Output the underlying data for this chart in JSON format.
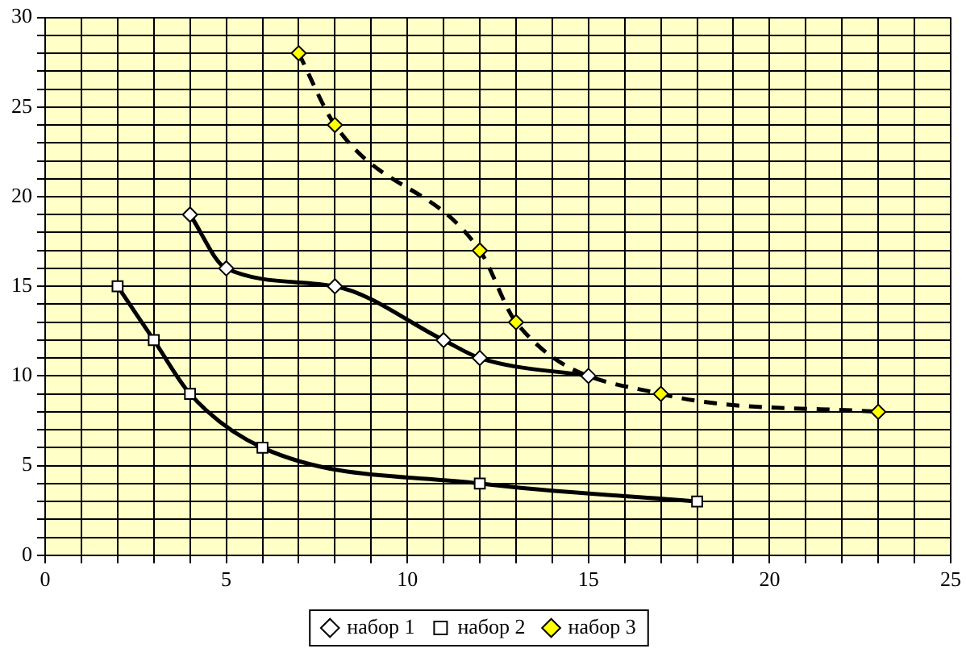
{
  "chart_data": {
    "type": "line",
    "xlim": [
      0,
      25
    ],
    "xticks": [
      0,
      {
        "value": 1,
        "label": null
      },
      {
        "value": 2,
        "label": null
      },
      {
        "value": 3,
        "label": null
      },
      {
        "value": 4,
        "label": null
      },
      5,
      {
        "value": 6,
        "label": null
      },
      {
        "value": 7,
        "label": null
      },
      {
        "value": 8,
        "label": null
      },
      {
        "value": 9,
        "label": null
      },
      10,
      {
        "value": 11,
        "label": null
      },
      {
        "value": 12,
        "label": null
      },
      {
        "value": 13,
        "label": null
      },
      {
        "value": 14,
        "label": null
      },
      15,
      {
        "value": 16,
        "label": null
      },
      {
        "value": 17,
        "label": null
      },
      {
        "value": 18,
        "label": null
      },
      {
        "value": 19,
        "label": null
      },
      20,
      {
        "value": 21,
        "label": null
      },
      {
        "value": 22,
        "label": null
      },
      {
        "value": 23,
        "label": null
      },
      {
        "value": 24,
        "label": null
      },
      25
    ],
    "ylim": [
      0,
      30
    ],
    "yticks": [
      0,
      {
        "value": 1,
        "label": null
      },
      {
        "value": 2,
        "label": null
      },
      {
        "value": 3,
        "label": null
      },
      {
        "value": 4,
        "label": null
      },
      5,
      {
        "value": 6,
        "label": null
      },
      {
        "value": 7,
        "label": null
      },
      {
        "value": 8,
        "label": null
      },
      {
        "value": 9,
        "label": null
      },
      10,
      {
        "value": 11,
        "label": null
      },
      {
        "value": 12,
        "label": null
      },
      {
        "value": 13,
        "label": null
      },
      {
        "value": 14,
        "label": null
      },
      15,
      {
        "value": 16,
        "label": null
      },
      {
        "value": 17,
        "label": null
      },
      {
        "value": 18,
        "label": null
      },
      {
        "value": 19,
        "label": null
      },
      20,
      {
        "value": 21,
        "label": null
      },
      {
        "value": 22,
        "label": null
      },
      {
        "value": 23,
        "label": null
      },
      {
        "value": 24,
        "label": null
      },
      25,
      {
        "value": 26,
        "label": null
      },
      {
        "value": 27,
        "label": null
      },
      {
        "value": 28,
        "label": null
      },
      {
        "value": 29,
        "label": null
      },
      30
    ],
    "grid": true,
    "legend": "bottom",
    "series": [
      {
        "name": "набор 1",
        "color": "#000000",
        "marker": "diamond",
        "line_style": "solid",
        "x": [
          4,
          5,
          8,
          11,
          12,
          15
        ],
        "values": [
          19,
          16,
          15,
          12,
          11,
          10
        ]
      },
      {
        "name": "набор 2",
        "color": "#000000",
        "marker": "square",
        "line_style": "solid",
        "x": [
          2,
          3,
          4,
          6,
          12,
          18
        ],
        "values": [
          15,
          12,
          9,
          6,
          4,
          3
        ]
      },
      {
        "name": "набор 3",
        "color": "#000000",
        "marker": "diamond",
        "line_style": "dashed",
        "x": [
          7,
          8,
          12,
          13,
          17,
          23
        ],
        "values": [
          28,
          24,
          17,
          13,
          9,
          8
        ]
      }
    ]
  }
}
